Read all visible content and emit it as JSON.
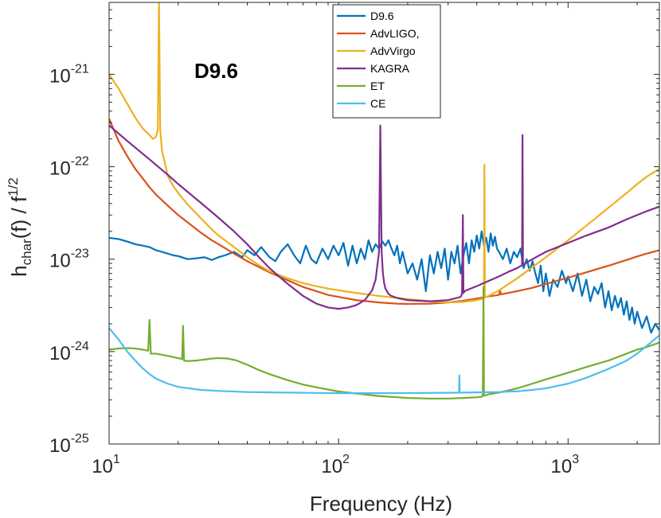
{
  "chart_data": {
    "type": "line",
    "title": "",
    "annotation": "D9.6",
    "xlabel": "Frequency (Hz)",
    "ylabel": {
      "base": "h",
      "sub": "char",
      "mid": "(f) / f",
      "sup": "1/2"
    },
    "xscale": "log",
    "yscale": "log",
    "xlim": [
      10,
      2500
    ],
    "ylim": [
      1e-25,
      6e-21
    ],
    "xticks": [
      {
        "value": 10,
        "base": "10",
        "exp": "1"
      },
      {
        "value": 100,
        "base": "10",
        "exp": "2"
      },
      {
        "value": 1000,
        "base": "10",
        "exp": "3"
      }
    ],
    "yticks": [
      {
        "value": 1e-25,
        "base": "10",
        "exp": "-25"
      },
      {
        "value": 1e-24,
        "base": "10",
        "exp": "-24"
      },
      {
        "value": 1e-23,
        "base": "10",
        "exp": "-23"
      },
      {
        "value": 1e-22,
        "base": "10",
        "exp": "-22"
      },
      {
        "value": 1e-21,
        "base": "10",
        "exp": "-21"
      }
    ],
    "legend_position": "top-center",
    "grid": false,
    "series": [
      {
        "name": "D9.6",
        "color": "#0072BD",
        "x": [
          10,
          11,
          12,
          13,
          14,
          15,
          16,
          17,
          18,
          19,
          20,
          22,
          24,
          26,
          28,
          30,
          32,
          35,
          38,
          40,
          43,
          46,
          50,
          53,
          56,
          60,
          64,
          68,
          72,
          76,
          80,
          85,
          90,
          95,
          100,
          105,
          110,
          115,
          120,
          125,
          130,
          135,
          140,
          145,
          150,
          155,
          160,
          165,
          170,
          175,
          180,
          185,
          190,
          200,
          210,
          220,
          230,
          240,
          250,
          260,
          270,
          280,
          290,
          300,
          310,
          320,
          330,
          340,
          350,
          360,
          370,
          380,
          390,
          400,
          410,
          420,
          430,
          440,
          450,
          460,
          470,
          480,
          490,
          500,
          520,
          540,
          560,
          580,
          600,
          620,
          640,
          660,
          680,
          700,
          720,
          740,
          760,
          780,
          800,
          830,
          860,
          900,
          940,
          980,
          1000,
          1050,
          1100,
          1150,
          1200,
          1250,
          1300,
          1350,
          1400,
          1450,
          1500,
          1550,
          1600,
          1650,
          1700,
          1750,
          1800,
          1850,
          1900,
          1950,
          2000,
          2100,
          2200,
          2300,
          2400,
          2500
        ],
        "y": [
          1.7e-23,
          1.65e-23,
          1.55e-23,
          1.45e-23,
          1.4e-23,
          1.35e-23,
          1.25e-23,
          1.2e-23,
          1.15e-23,
          1.1e-23,
          1.08e-23,
          1e-23,
          1.02e-23,
          1.05e-23,
          9.8e-24,
          1.05e-23,
          1.1e-23,
          1.2e-23,
          1.05e-23,
          1.25e-23,
          1.1e-23,
          1.35e-23,
          1.05e-23,
          9.5e-24,
          1.2e-23,
          1.45e-23,
          1.1e-23,
          9e-24,
          1.4e-23,
          1e-23,
          9e-24,
          1.3e-23,
          1e-23,
          1.4e-23,
          1.1e-23,
          1.5e-23,
          8.5e-24,
          1.4e-23,
          9e-24,
          1.3e-23,
          1e-23,
          1.6e-23,
          1.2e-23,
          1.45e-23,
          1.3e-23,
          1.55e-23,
          1.4e-23,
          1.6e-23,
          1.3e-23,
          1.1e-23,
          1.4e-23,
          9e-24,
          1.2e-23,
          7e-24,
          9e-24,
          6e-24,
          1e-23,
          4.5e-24,
          1.1e-23,
          7e-24,
          1.2e-23,
          8e-24,
          1.3e-23,
          6e-24,
          1.2e-23,
          9e-24,
          1.4e-23,
          7e-24,
          1.1e-23,
          1.5e-23,
          9e-24,
          1.6e-23,
          1.2e-23,
          1.8e-23,
          1.3e-23,
          2e-23,
          1.4e-23,
          1.7e-23,
          1.2e-23,
          1.9e-23,
          1.4e-23,
          1.75e-23,
          1.3e-23,
          1.2e-23,
          1e-23,
          1.3e-23,
          9e-24,
          1.2e-23,
          1.05e-23,
          1.3e-23,
          8e-24,
          1e-23,
          7.5e-24,
          9.5e-24,
          7e-24,
          5.5e-24,
          8.5e-24,
          4.5e-24,
          7e-24,
          4e-24,
          6e-24,
          5e-24,
          7.5e-24,
          5.5e-24,
          6.5e-24,
          4.5e-24,
          7e-24,
          4e-24,
          6e-24,
          3.5e-24,
          5e-24,
          4.2e-24,
          5.5e-24,
          3e-24,
          4.5e-24,
          2.8e-24,
          4e-24,
          3e-24,
          3.8e-24,
          2.5e-24,
          3.5e-24,
          2.2e-24,
          3e-24,
          2e-24,
          2.7e-24,
          1.8e-24,
          2.4e-24,
          1.6e-24,
          2e-24,
          1.7e-24
        ]
      },
      {
        "name": "AdvLIGO,",
        "color": "#D95319",
        "x": [
          10,
          11,
          12,
          13,
          14,
          15,
          16,
          18,
          20,
          22,
          25,
          28,
          30,
          35,
          40,
          45,
          50,
          60,
          70,
          80,
          90,
          100,
          120,
          150,
          180,
          200,
          250,
          300,
          350,
          400,
          450,
          500,
          505,
          510,
          520,
          600,
          700,
          800,
          1000,
          1200,
          1500,
          1800,
          2000,
          2200,
          2500
        ],
        "y": [
          3.3e-22,
          1.9e-22,
          1.3e-22,
          9.5e-23,
          7.5e-23,
          6e-23,
          5e-23,
          3.8e-23,
          3e-23,
          2.5e-23,
          1.95e-23,
          1.6e-23,
          1.45e-23,
          1.15e-23,
          9.5e-24,
          8.2e-24,
          7.2e-24,
          5.9e-24,
          5e-24,
          4.5e-24,
          4.1e-24,
          3.9e-24,
          3.6e-24,
          3.4e-24,
          3.3e-24,
          3.28e-24,
          3.3e-24,
          3.4e-24,
          3.55e-24,
          3.75e-24,
          3.95e-24,
          4.1e-24,
          4.6e-24,
          4.15e-24,
          4.2e-24,
          4.5e-24,
          4.9e-24,
          5.4e-24,
          6.3e-24,
          7.2e-24,
          8.5e-24,
          9.8e-24,
          1.07e-23,
          1.15e-23,
          1.25e-23
        ]
      },
      {
        "name": "AdvVirgo",
        "color": "#EDB120",
        "x": [
          10,
          11,
          12,
          13,
          14,
          15,
          15.5,
          16,
          16.3,
          16.5,
          16.7,
          17,
          17.5,
          18,
          19,
          20,
          22,
          25,
          28,
          30,
          35,
          40,
          45,
          50,
          60,
          70,
          80,
          90,
          100,
          120,
          150,
          180,
          200,
          250,
          300,
          350,
          400,
          420,
          430,
          432,
          434,
          440,
          450,
          500,
          600,
          700,
          800,
          1000,
          1200,
          1500,
          1800,
          2000,
          2200,
          2500
        ],
        "y": [
          1e-21,
          7e-22,
          4.8e-22,
          3.4e-22,
          2.6e-22,
          2.2e-22,
          2e-22,
          2.1e-22,
          2.5e-22,
          6e-21,
          2.5e-22,
          1.5e-22,
          1.1e-22,
          8e-23,
          6.2e-23,
          5.2e-23,
          3.9e-23,
          2.8e-23,
          2.1e-23,
          1.8e-23,
          1.35e-23,
          1.05e-23,
          8.6e-24,
          7.4e-24,
          6.2e-24,
          5.5e-24,
          5.1e-24,
          4.8e-24,
          4.6e-24,
          4.3e-24,
          4e-24,
          3.8e-24,
          3.7e-24,
          3.5e-24,
          3.4e-24,
          3.45e-24,
          3.6e-24,
          3.7e-24,
          3.8e-24,
          1.05e-22,
          3.85e-24,
          3.9e-24,
          4e-24,
          4.6e-24,
          6.2e-24,
          8.2e-24,
          1.05e-23,
          1.6e-23,
          2.3e-23,
          3.6e-23,
          5.2e-23,
          6.5e-23,
          7.8e-23,
          9.5e-23
        ]
      },
      {
        "name": "KAGRA",
        "color": "#7E2F8E",
        "x": [
          10,
          12,
          15,
          18,
          20,
          25,
          30,
          35,
          40,
          45,
          50,
          55,
          60,
          70,
          80,
          90,
          100,
          110,
          120,
          130,
          140,
          145,
          150,
          152,
          154,
          156,
          158,
          160,
          165,
          170,
          180,
          200,
          250,
          300,
          340,
          345,
          348,
          350,
          352,
          355,
          360,
          400,
          450,
          500,
          550,
          600,
          620,
          630,
          633,
          636,
          640,
          650,
          700,
          800,
          1000,
          1200,
          1500,
          1800,
          2000,
          2200,
          2500
        ],
        "y": [
          2.8e-22,
          1.9e-22,
          1.2e-22,
          8.2e-23,
          6.5e-23,
          4.1e-23,
          2.8e-23,
          2e-23,
          1.45e-23,
          1.05e-23,
          8e-24,
          6.5e-24,
          5.4e-24,
          4e-24,
          3.3e-24,
          3e-24,
          2.9e-24,
          3e-24,
          3.2e-24,
          3.6e-24,
          4.6e-24,
          6e-24,
          1.2e-23,
          2.8e-22,
          1.2e-23,
          7e-24,
          5.5e-24,
          4.8e-24,
          4.2e-24,
          4e-24,
          3.8e-24,
          3.6e-24,
          3.5e-24,
          3.6e-24,
          3.9e-24,
          4.2e-24,
          3e-23,
          4.3e-24,
          4.4e-24,
          4.5e-24,
          4.6e-24,
          5.1e-24,
          5.8e-24,
          6.5e-24,
          7.3e-24,
          8e-24,
          8.4e-24,
          8.6e-24,
          2.2e-22,
          8.7e-24,
          8.8e-24,
          9e-24,
          1e-23,
          1.2e-23,
          1.5e-23,
          1.8e-23,
          2.2e-23,
          2.7e-23,
          3e-23,
          3.3e-23,
          3.7e-23
        ]
      },
      {
        "name": "ET",
        "color": "#77AC30",
        "x": [
          10,
          11,
          12,
          13,
          14,
          14.8,
          15,
          15.2,
          16,
          18,
          20,
          20.8,
          21,
          21.2,
          22,
          24,
          26,
          28,
          30,
          33,
          36,
          40,
          45,
          50,
          60,
          70,
          80,
          100,
          150,
          200,
          250,
          300,
          350,
          400,
          420,
          425,
          428,
          430,
          435,
          450,
          500,
          600,
          700,
          800,
          1000,
          1200,
          1500,
          1800,
          2000,
          2200,
          2500
        ],
        "y": [
          1.05e-24,
          1.08e-24,
          1.09e-24,
          1.08e-24,
          1.05e-24,
          1.02e-24,
          2.2e-24,
          9.5e-25,
          9.5e-25,
          9e-25,
          8.5e-25,
          8.3e-25,
          1.9e-24,
          8e-25,
          7.9e-25,
          8e-25,
          8.2e-25,
          8.4e-25,
          8.5e-25,
          8.4e-25,
          8e-25,
          7.2e-25,
          6.3e-25,
          5.7e-25,
          4.9e-25,
          4.4e-25,
          4.1e-25,
          3.7e-25,
          3.3e-25,
          3.15e-25,
          3.1e-25,
          3.1e-25,
          3.15e-25,
          3.2e-25,
          3.25e-25,
          3.3e-25,
          5e-24,
          3.35e-25,
          3.35e-25,
          3.45e-25,
          3.6e-25,
          4e-25,
          4.5e-25,
          5e-25,
          5.9e-25,
          6.8e-25,
          8e-25,
          9.5e-25,
          1.05e-24,
          1.12e-24,
          1.25e-24
        ]
      },
      {
        "name": "CE",
        "color": "#4DBEEE",
        "x": [
          10,
          11,
          12,
          13,
          14,
          15,
          16,
          18,
          20,
          25,
          30,
          40,
          50,
          70,
          100,
          150,
          200,
          300,
          335,
          336,
          337,
          340,
          400,
          500,
          600,
          700,
          800,
          1000,
          1200,
          1500,
          1800,
          2000,
          2200,
          2500
        ],
        "y": [
          1.8e-24,
          1.35e-24,
          1e-24,
          8e-25,
          6.6e-25,
          5.7e-25,
          5.1e-25,
          4.5e-25,
          4.15e-25,
          3.85e-25,
          3.75e-25,
          3.65e-25,
          3.62e-25,
          3.58e-25,
          3.55e-25,
          3.55e-25,
          3.56e-25,
          3.58e-25,
          3.6e-25,
          5.5e-25,
          3.6e-25,
          3.6e-25,
          3.62e-25,
          3.65e-25,
          3.72e-25,
          3.85e-25,
          4e-25,
          4.5e-25,
          5.2e-25,
          6.5e-25,
          8e-25,
          9.5e-25,
          1.15e-24,
          1.5e-24
        ]
      }
    ]
  }
}
